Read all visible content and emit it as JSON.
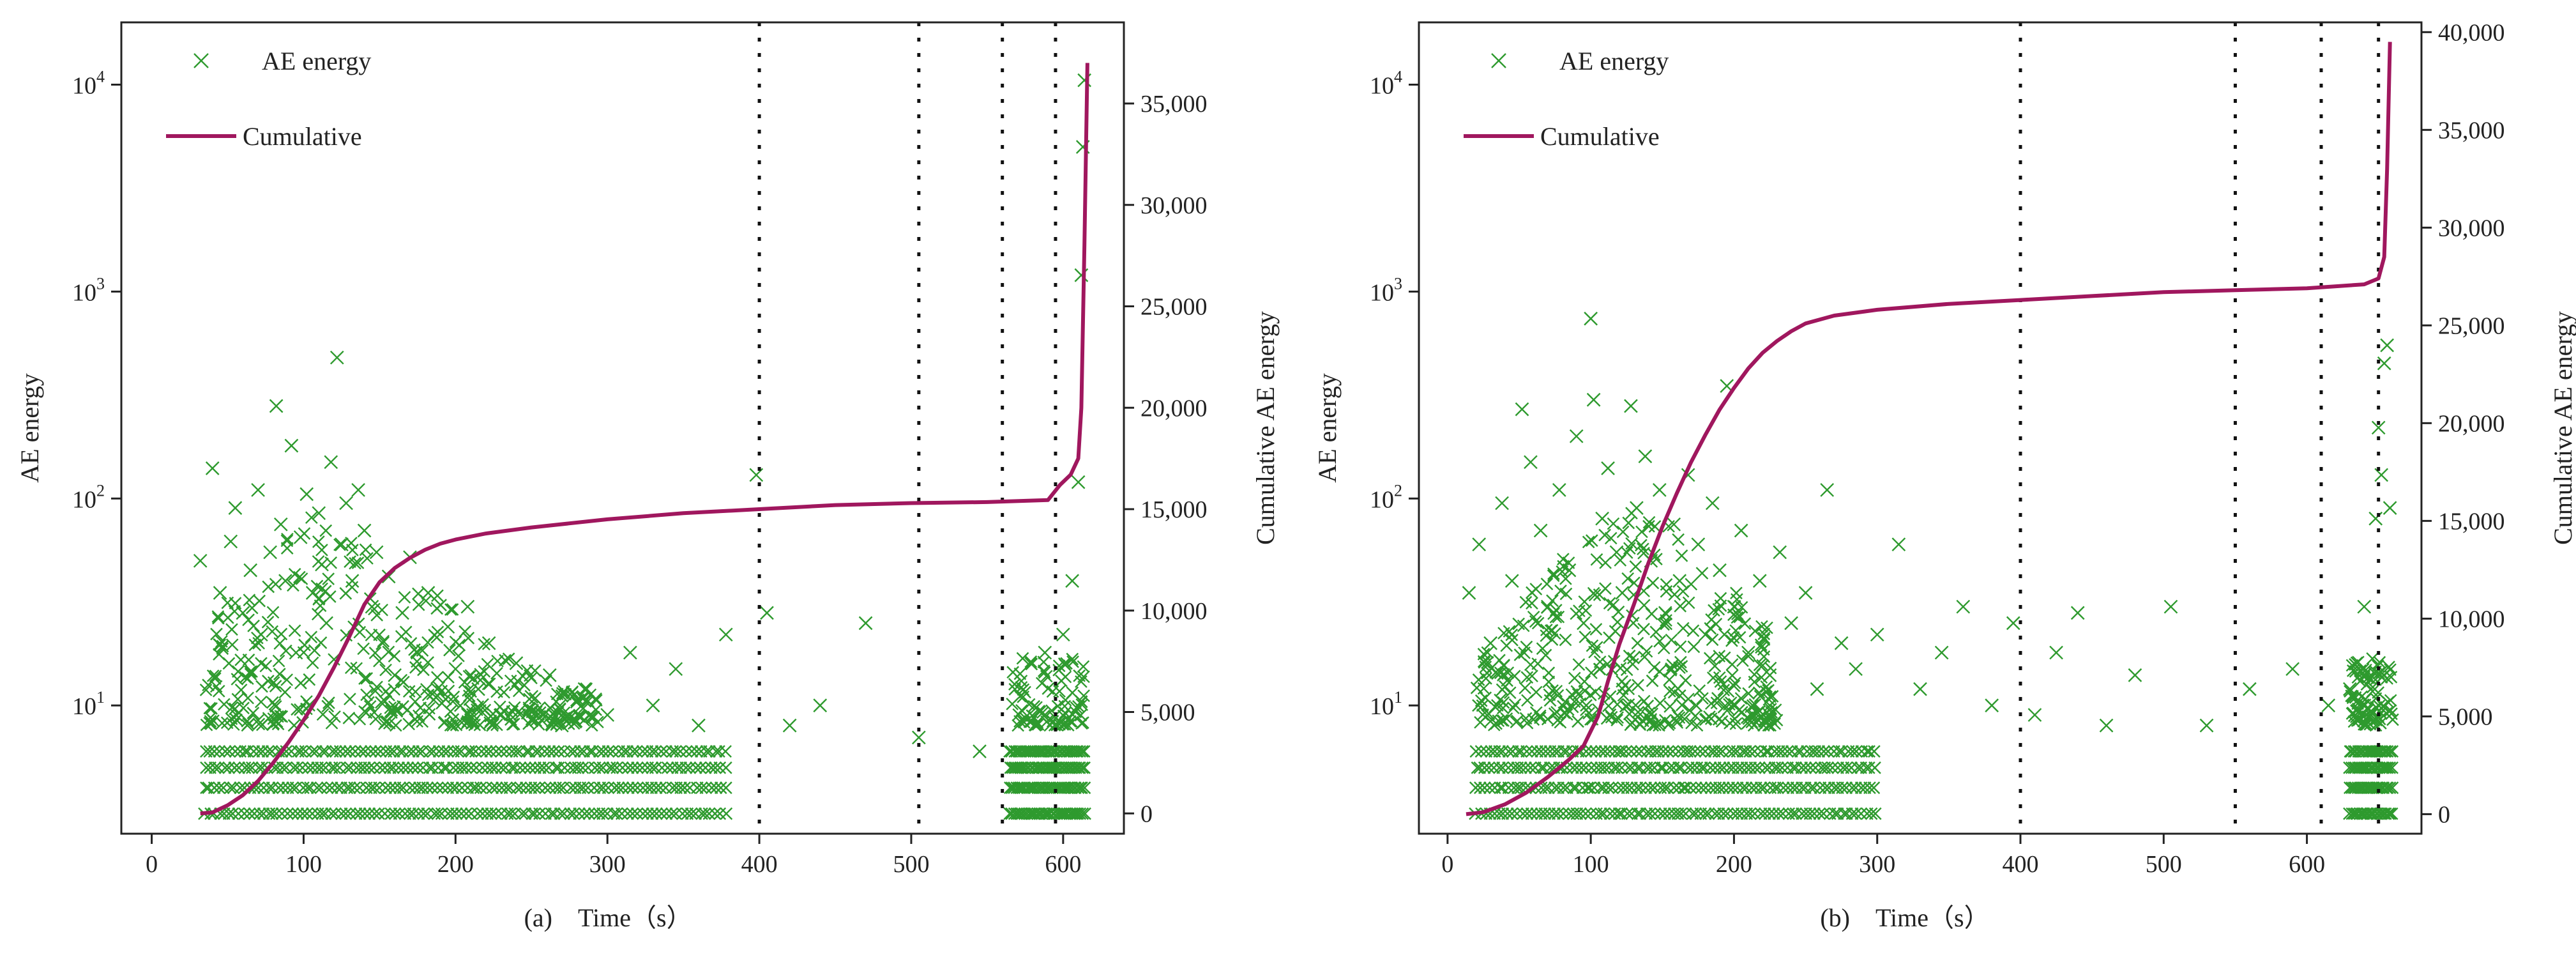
{
  "colors": {
    "scatter": "#2e9a2e",
    "cumulative": "#a0175e",
    "axis": "#222222",
    "divider": "#111111"
  },
  "chart_data": [
    {
      "type": "scatter",
      "panel": "a",
      "caption_letter": "(a)",
      "xlabel": "Time（s）",
      "ylabel": "AE energy",
      "y2label": "Cumulative AE energy",
      "xlim": [
        -20,
        640
      ],
      "ylim_log": [
        2.4,
        20000
      ],
      "y_scale": "log",
      "y2lim": [
        -1000,
        39000
      ],
      "x_ticks": [
        0,
        100,
        200,
        300,
        400,
        500,
        600
      ],
      "x_tick_labels": [
        "0",
        "100",
        "200",
        "300",
        "400",
        "500",
        "600"
      ],
      "y_ticks": [
        10,
        100,
        1000,
        10000
      ],
      "y_tick_labels": [
        "10",
        "10",
        "10",
        "10"
      ],
      "y_tick_exponents": [
        "1",
        "2",
        "3",
        "4"
      ],
      "y2_ticks": [
        0,
        5000,
        10000,
        15000,
        20000,
        25000,
        30000,
        35000
      ],
      "y2_tick_labels": [
        "0",
        "5,000",
        "10,000",
        "15,000",
        "20,000",
        "25,000",
        "30,000",
        "35,000"
      ],
      "legend": [
        {
          "label": "AE energy",
          "marker": "x"
        },
        {
          "label": "Cumulative",
          "marker": "line"
        }
      ],
      "legend_position": "top-left",
      "stage_boundaries_x": [
        400,
        505,
        560,
        595
      ],
      "series": [
        {
          "name": "AE energy",
          "kind": "scatter",
          "dense_region": {
            "x_range": [
              35,
              380
            ],
            "levels": [
              2,
              3,
              4,
              5,
              6
            ]
          },
          "failure_region": {
            "x_range": [
              565,
              615
            ],
            "levels": [
              2,
              3,
              4,
              5,
              6
            ]
          },
          "points": [
            [
              32,
              50
            ],
            [
              40,
              140
            ],
            [
              45,
              35
            ],
            [
              52,
              62
            ],
            [
              55,
              90
            ],
            [
              60,
              28
            ],
            [
              65,
              45
            ],
            [
              70,
              110
            ],
            [
              72,
              22
            ],
            [
              78,
              55
            ],
            [
              82,
              280
            ],
            [
              85,
              75
            ],
            [
              88,
              40
            ],
            [
              92,
              180
            ],
            [
              95,
              18
            ],
            [
              98,
              65
            ],
            [
              102,
              105
            ],
            [
              106,
              35
            ],
            [
              110,
              85
            ],
            [
              112,
              48
            ],
            [
              115,
              25
            ],
            [
              118,
              150
            ],
            [
              122,
              480
            ],
            [
              125,
              60
            ],
            [
              128,
              95
            ],
            [
              132,
              40
            ],
            [
              136,
              110
            ],
            [
              140,
              70
            ],
            [
              145,
              30
            ],
            [
              148,
              55
            ],
            [
              152,
              20
            ],
            [
              156,
              42
            ],
            [
              160,
              14
            ],
            [
              165,
              28
            ],
            [
              170,
              52
            ],
            [
              175,
              18
            ],
            [
              182,
              35
            ],
            [
              188,
              12
            ],
            [
              195,
              24
            ],
            [
              200,
              15
            ],
            [
              208,
              30
            ],
            [
              215,
              12
            ],
            [
              222,
              20
            ],
            [
              230,
              9
            ],
            [
              240,
              16
            ],
            [
              250,
              11
            ],
            [
              262,
              14
            ],
            [
              270,
              8
            ],
            [
              285,
              12
            ],
            [
              300,
              9
            ],
            [
              315,
              18
            ],
            [
              330,
              10
            ],
            [
              345,
              15
            ],
            [
              360,
              8
            ],
            [
              378,
              22
            ],
            [
              398,
              130
            ],
            [
              405,
              28
            ],
            [
              420,
              8
            ],
            [
              440,
              10
            ],
            [
              470,
              25
            ],
            [
              505,
              7
            ],
            [
              545,
              6
            ],
            [
              588,
              18
            ],
            [
              600,
              22
            ],
            [
              606,
              40
            ],
            [
              610,
              120
            ],
            [
              612,
              1200
            ],
            [
              613,
              5000
            ],
            [
              614,
              10500
            ]
          ]
        },
        {
          "name": "Cumulative",
          "kind": "line",
          "axis": "y2",
          "points": [
            [
              32,
              0
            ],
            [
              40,
              50
            ],
            [
              50,
              400
            ],
            [
              60,
              900
            ],
            [
              70,
              1600
            ],
            [
              80,
              2500
            ],
            [
              90,
              3500
            ],
            [
              100,
              4600
            ],
            [
              110,
              5800
            ],
            [
              120,
              7200
            ],
            [
              130,
              8700
            ],
            [
              140,
              10300
            ],
            [
              150,
              11400
            ],
            [
              160,
              12100
            ],
            [
              170,
              12600
            ],
            [
              180,
              13000
            ],
            [
              190,
              13300
            ],
            [
              200,
              13500
            ],
            [
              220,
              13800
            ],
            [
              250,
              14100
            ],
            [
              300,
              14500
            ],
            [
              350,
              14800
            ],
            [
              400,
              15000
            ],
            [
              450,
              15200
            ],
            [
              500,
              15300
            ],
            [
              550,
              15350
            ],
            [
              590,
              15450
            ],
            [
              598,
              16200
            ],
            [
              605,
              16700
            ],
            [
              610,
              17500
            ],
            [
              612,
              20000
            ],
            [
              614,
              28000
            ],
            [
              616,
              37000
            ]
          ]
        }
      ]
    },
    {
      "type": "scatter",
      "panel": "b",
      "caption_letter": "(b)",
      "xlabel": "Time（s）",
      "ylabel": "AE energy",
      "y2label": "Cumulative AE energy",
      "xlim": [
        -20,
        680
      ],
      "ylim_log": [
        2.4,
        20000
      ],
      "y_scale": "log",
      "y2lim": [
        -1000,
        40500
      ],
      "x_ticks": [
        0,
        100,
        200,
        300,
        400,
        500,
        600
      ],
      "x_tick_labels": [
        "0",
        "100",
        "200",
        "300",
        "400",
        "500",
        "600"
      ],
      "y_ticks": [
        10,
        100,
        1000,
        10000
      ],
      "y_tick_labels": [
        "10",
        "10",
        "10",
        "10"
      ],
      "y_tick_exponents": [
        "1",
        "2",
        "3",
        "4"
      ],
      "y2_ticks": [
        0,
        5000,
        10000,
        15000,
        20000,
        25000,
        30000,
        35000,
        40000
      ],
      "y2_tick_labels": [
        "0",
        "5,000",
        "10,000",
        "15,000",
        "20,000",
        "25,000",
        "30,000",
        "35,000",
        "40,000"
      ],
      "legend": [
        {
          "label": "AE energy",
          "marker": "x"
        },
        {
          "label": "Cumulative",
          "marker": "line"
        }
      ],
      "legend_position": "top-left",
      "stage_boundaries_x": [
        400,
        550,
        610,
        650
      ],
      "series": [
        {
          "name": "AE energy",
          "kind": "scatter",
          "dense_region": {
            "x_range": [
              20,
              300
            ],
            "levels": [
              2,
              3,
              4,
              5,
              6
            ]
          },
          "failure_region": {
            "x_range": [
              630,
              660
            ],
            "levels": [
              2,
              3,
              4,
              5,
              6
            ]
          },
          "points": [
            [
              15,
              35
            ],
            [
              22,
              60
            ],
            [
              30,
              20
            ],
            [
              38,
              95
            ],
            [
              45,
              40
            ],
            [
              52,
              270
            ],
            [
              58,
              150
            ],
            [
              65,
              70
            ],
            [
              70,
              30
            ],
            [
              78,
              110
            ],
            [
              85,
              45
            ],
            [
              90,
              200
            ],
            [
              95,
              25
            ],
            [
              100,
              740
            ],
            [
              102,
              300
            ],
            [
              108,
              80
            ],
            [
              112,
              140
            ],
            [
              118,
              55
            ],
            [
              122,
              35
            ],
            [
              128,
              280
            ],
            [
              132,
              90
            ],
            [
              138,
              160
            ],
            [
              142,
              50
            ],
            [
              148,
              110
            ],
            [
              152,
              28
            ],
            [
              158,
              75
            ],
            [
              162,
              40
            ],
            [
              168,
              130
            ],
            [
              175,
              60
            ],
            [
              180,
              22
            ],
            [
              185,
              95
            ],
            [
              190,
              45
            ],
            [
              195,
              350
            ],
            [
              200,
              30
            ],
            [
              205,
              70
            ],
            [
              210,
              18
            ],
            [
              218,
              40
            ],
            [
              225,
              14
            ],
            [
              232,
              55
            ],
            [
              240,
              25
            ],
            [
              250,
              35
            ],
            [
              258,
              12
            ],
            [
              265,
              110
            ],
            [
              275,
              20
            ],
            [
              285,
              15
            ],
            [
              300,
              22
            ],
            [
              315,
              60
            ],
            [
              330,
              12
            ],
            [
              345,
              18
            ],
            [
              360,
              30
            ],
            [
              380,
              10
            ],
            [
              395,
              25
            ],
            [
              410,
              9
            ],
            [
              425,
              18
            ],
            [
              440,
              28
            ],
            [
              460,
              8
            ],
            [
              480,
              14
            ],
            [
              505,
              30
            ],
            [
              530,
              8
            ],
            [
              560,
              12
            ],
            [
              590,
              15
            ],
            [
              615,
              10
            ],
            [
              630,
              12
            ],
            [
              640,
              30
            ],
            [
              648,
              80
            ],
            [
              650,
              220
            ],
            [
              652,
              130
            ],
            [
              654,
              450
            ],
            [
              656,
              550
            ],
            [
              658,
              90
            ]
          ]
        },
        {
          "name": "Cumulative",
          "kind": "line",
          "axis": "y2",
          "points": [
            [
              13,
              0
            ],
            [
              25,
              100
            ],
            [
              40,
              500
            ],
            [
              55,
              1100
            ],
            [
              70,
              1900
            ],
            [
              85,
              2800
            ],
            [
              95,
              3500
            ],
            [
              105,
              5000
            ],
            [
              112,
              6800
            ],
            [
              120,
              8700
            ],
            [
              130,
              10700
            ],
            [
              140,
              12800
            ],
            [
              150,
              14700
            ],
            [
              160,
              16400
            ],
            [
              170,
              18000
            ],
            [
              180,
              19400
            ],
            [
              190,
              20700
            ],
            [
              200,
              21800
            ],
            [
              210,
              22800
            ],
            [
              220,
              23600
            ],
            [
              230,
              24200
            ],
            [
              240,
              24700
            ],
            [
              250,
              25100
            ],
            [
              270,
              25500
            ],
            [
              300,
              25800
            ],
            [
              350,
              26100
            ],
            [
              400,
              26300
            ],
            [
              450,
              26500
            ],
            [
              500,
              26700
            ],
            [
              550,
              26800
            ],
            [
              600,
              26900
            ],
            [
              640,
              27100
            ],
            [
              650,
              27400
            ],
            [
              654,
              28500
            ],
            [
              656,
              33000
            ],
            [
              658,
              39500
            ]
          ]
        }
      ]
    }
  ]
}
